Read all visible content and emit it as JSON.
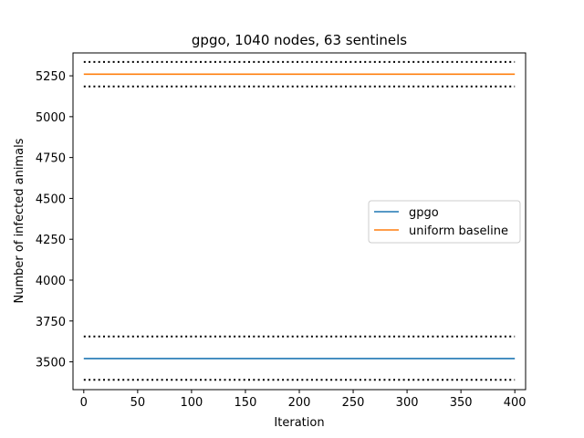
{
  "chart_data": {
    "type": "line",
    "title": "gpgo, 1040 nodes, 63 sentinels",
    "xlabel": "Iteration",
    "ylabel": "Number of infected animals",
    "xlim": [
      -10,
      410
    ],
    "ylim": [
      3330,
      5390
    ],
    "xticks": [
      0,
      50,
      100,
      150,
      200,
      250,
      300,
      350,
      400
    ],
    "yticks": [
      3500,
      3750,
      4000,
      4250,
      4500,
      4750,
      5000,
      5250
    ],
    "grid": false,
    "legend_position": "center-right",
    "x": [
      0,
      400
    ],
    "series": [
      {
        "name": "gpgo",
        "color": "#1f77b4",
        "values": [
          3520,
          3520
        ],
        "style": "solid"
      },
      {
        "name": "uniform baseline",
        "color": "#ff7f0e",
        "values": [
          5260,
          5260
        ],
        "style": "solid"
      }
    ],
    "bands": [
      {
        "color": "#000000",
        "style": "dotted",
        "values": [
          5335,
          5335
        ]
      },
      {
        "color": "#000000",
        "style": "dotted",
        "values": [
          5185,
          5185
        ]
      },
      {
        "color": "#000000",
        "style": "dotted",
        "values": [
          3655,
          3655
        ]
      },
      {
        "color": "#000000",
        "style": "dotted",
        "values": [
          3390,
          3390
        ]
      }
    ]
  }
}
